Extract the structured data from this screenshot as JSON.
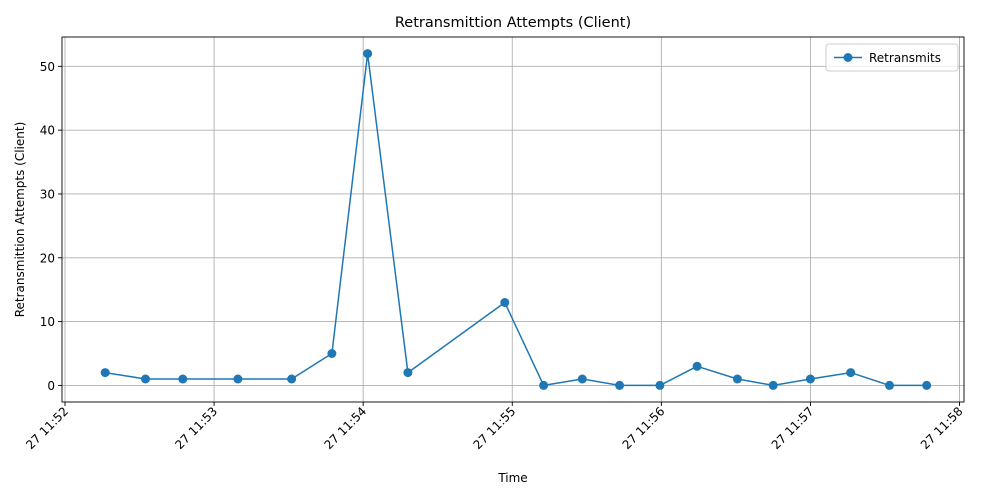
{
  "chart_data": {
    "type": "line",
    "title": "Retransmittion Attempts (Client)",
    "xlabel": "Time",
    "ylabel": "Retransmittion Attempts (Client)",
    "x_tick_labels": [
      "27 11:52",
      "27 11:53",
      "27 11:54",
      "27 11:55",
      "27 11:56",
      "27 11:57",
      "27 11:58"
    ],
    "x_tick_minutes": [
      52,
      53,
      54,
      55,
      56,
      57,
      58
    ],
    "y_ticks": [
      0,
      10,
      20,
      30,
      40,
      50
    ],
    "xlim": [
      51.98,
      58.03
    ],
    "ylim": [
      -2.6,
      54.6
    ],
    "grid": true,
    "legend_position": "upper right",
    "series": [
      {
        "name": "Retransmits",
        "color": "#1f77b4",
        "marker": "circle",
        "x": [
          52.27,
          52.54,
          52.79,
          53.16,
          53.52,
          53.79,
          54.03,
          54.3,
          54.95,
          55.21,
          55.47,
          55.72,
          55.99,
          56.24,
          56.51,
          56.75,
          57.0,
          57.27,
          57.53,
          57.78
        ],
        "y": [
          2,
          1,
          1,
          1,
          1,
          5,
          52,
          2,
          13,
          0,
          1,
          0,
          0,
          3,
          1,
          0,
          1,
          2,
          0,
          0
        ]
      }
    ]
  }
}
